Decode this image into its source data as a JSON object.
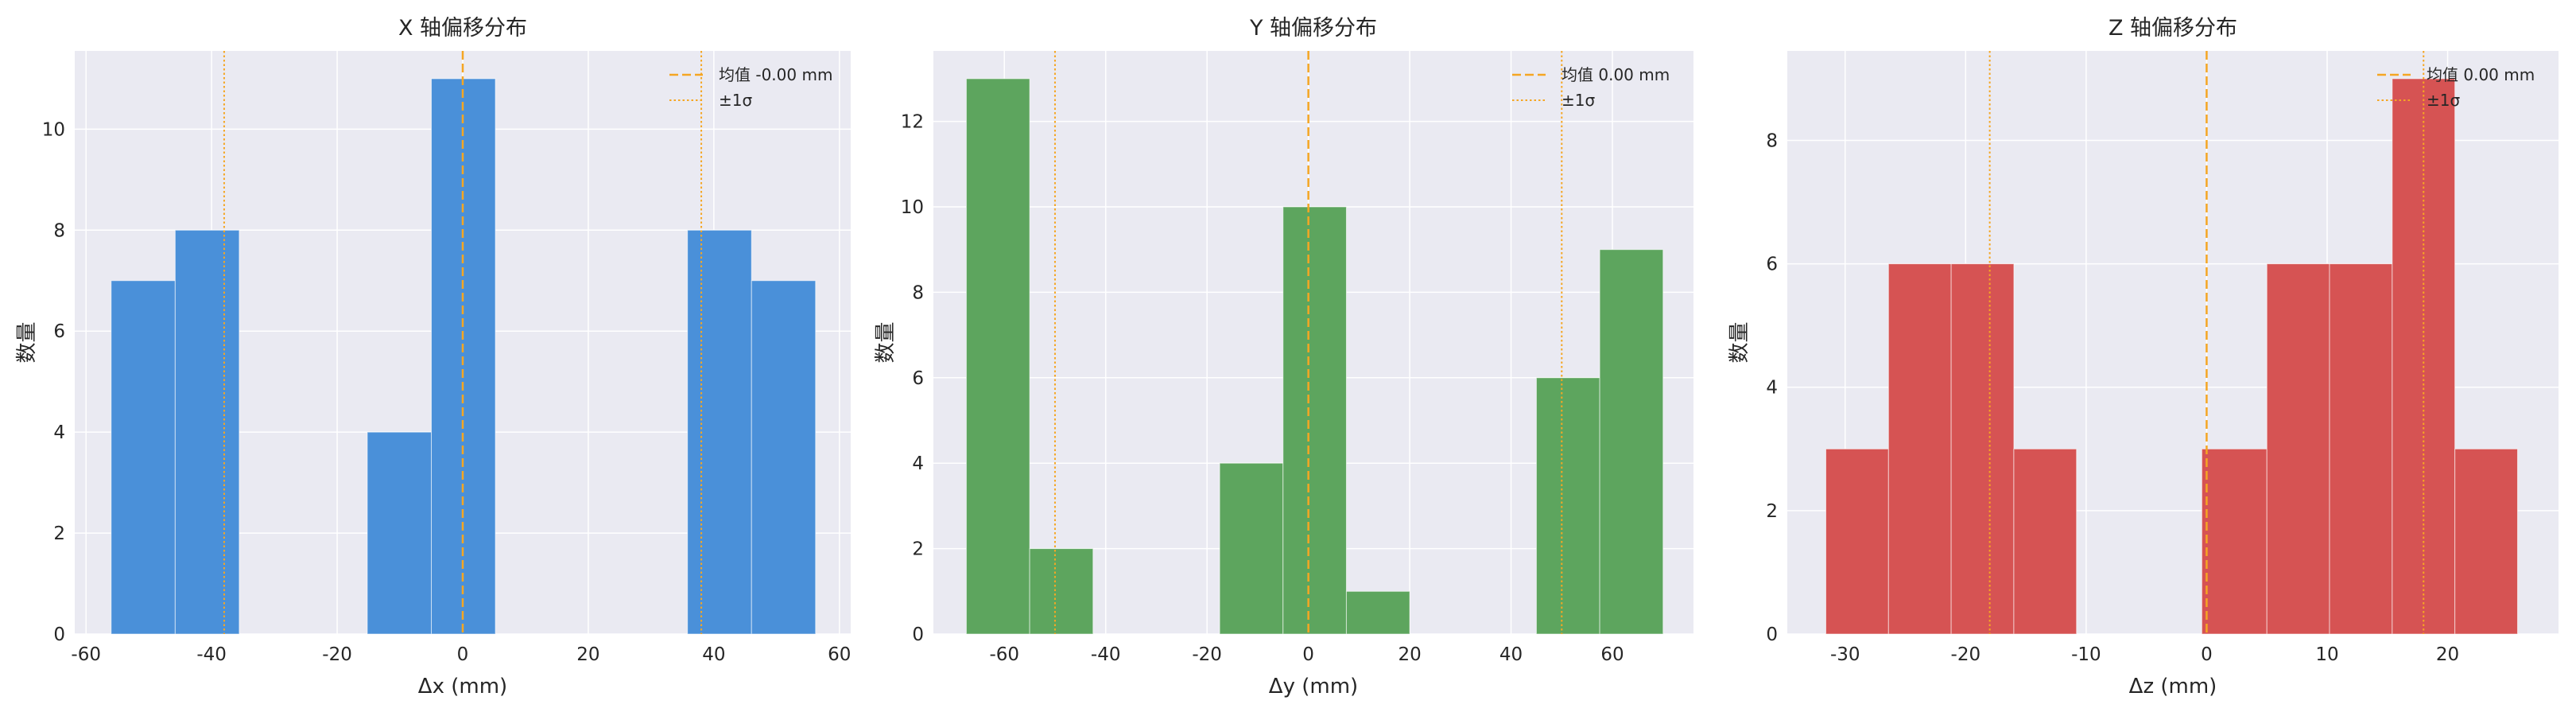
{
  "chart_data": [
    {
      "type": "bar",
      "title": "X 轴偏移分布",
      "xlabel": "Δx (mm)",
      "ylabel": "数量",
      "xlim": [
        -61.8,
        61.8
      ],
      "ylim": [
        0,
        11.55
      ],
      "xticks": [
        -60,
        -40,
        -20,
        0,
        20,
        40,
        60
      ],
      "yticks": [
        0,
        2,
        4,
        6,
        8,
        10
      ],
      "xtick_labels": [
        "-60",
        "-40",
        "-20",
        "0",
        "20",
        "40",
        "60"
      ],
      "ytick_labels": [
        "0",
        "2",
        "4",
        "6",
        "8",
        "10"
      ],
      "bins": [
        {
          "x0": -56.0,
          "x1": -45.8,
          "count": 7
        },
        {
          "x0": -45.8,
          "x1": -35.6,
          "count": 8
        },
        {
          "x0": -35.6,
          "x1": -25.4,
          "count": 0
        },
        {
          "x0": -25.4,
          "x1": -15.2,
          "count": 0
        },
        {
          "x0": -15.2,
          "x1": -5.0,
          "count": 4
        },
        {
          "x0": -5.0,
          "x1": 5.2,
          "count": 11
        },
        {
          "x0": 5.2,
          "x1": 15.4,
          "count": 0
        },
        {
          "x0": 15.4,
          "x1": 25.6,
          "count": 0
        },
        {
          "x0": 25.6,
          "x1": 35.8,
          "count": 0
        },
        {
          "x0": 35.8,
          "x1": 46.0,
          "count": 8
        },
        {
          "x0": 46.0,
          "x1": 56.2,
          "count": 7
        }
      ],
      "color": "#4a90d9",
      "mean": 0.0,
      "sigma": 38.0,
      "grid": true,
      "legend": [
        {
          "label": "均值 -0.00 mm",
          "style": "dashed"
        },
        {
          "label": "±1σ",
          "style": "dotted"
        }
      ],
      "legend_position": "top-right"
    },
    {
      "type": "bar",
      "title": "Y 轴偏移分布",
      "xlabel": "Δy (mm)",
      "ylabel": "数量",
      "xlim": [
        -74,
        76
      ],
      "ylim": [
        0,
        13.65
      ],
      "xticks": [
        -60,
        -40,
        -20,
        0,
        20,
        40,
        60
      ],
      "yticks": [
        0,
        2,
        4,
        6,
        8,
        10,
        12
      ],
      "xtick_labels": [
        "-60",
        "-40",
        "-20",
        "0",
        "20",
        "40",
        "60"
      ],
      "ytick_labels": [
        "0",
        "2",
        "4",
        "6",
        "8",
        "10",
        "12"
      ],
      "bins": [
        {
          "x0": -67.5,
          "x1": -55.0,
          "count": 13
        },
        {
          "x0": -55.0,
          "x1": -42.5,
          "count": 2
        },
        {
          "x0": -42.5,
          "x1": -30.0,
          "count": 0
        },
        {
          "x0": -30.0,
          "x1": -17.5,
          "count": 0
        },
        {
          "x0": -17.5,
          "x1": -5.0,
          "count": 4
        },
        {
          "x0": -5.0,
          "x1": 7.5,
          "count": 10
        },
        {
          "x0": 7.5,
          "x1": 20.0,
          "count": 1
        },
        {
          "x0": 20.0,
          "x1": 32.5,
          "count": 0
        },
        {
          "x0": 32.5,
          "x1": 45.0,
          "count": 0
        },
        {
          "x0": 45.0,
          "x1": 57.5,
          "count": 6
        },
        {
          "x0": 57.5,
          "x1": 70.0,
          "count": 9
        }
      ],
      "color": "#5da55e",
      "mean": 0.0,
      "sigma": 50.0,
      "grid": true,
      "legend": [
        {
          "label": "均值 0.00 mm",
          "style": "dashed"
        },
        {
          "label": "±1σ",
          "style": "dotted"
        }
      ],
      "legend_position": "top-right"
    },
    {
      "type": "bar",
      "title": "Z 轴偏移分布",
      "xlabel": "Δz (mm)",
      "ylabel": "数量",
      "xlim": [
        -34.8,
        29.2
      ],
      "ylim": [
        0,
        9.45
      ],
      "xticks": [
        -30,
        -20,
        -10,
        0,
        10,
        20
      ],
      "yticks": [
        0,
        2,
        4,
        6,
        8
      ],
      "xtick_labels": [
        "-30",
        "-20",
        "-10",
        "0",
        "10",
        "20"
      ],
      "ytick_labels": [
        "0",
        "2",
        "4",
        "6",
        "8"
      ],
      "bins": [
        {
          "x0": -31.6,
          "x1": -26.4,
          "count": 3
        },
        {
          "x0": -26.4,
          "x1": -21.2,
          "count": 6
        },
        {
          "x0": -21.2,
          "x1": -16.0,
          "count": 6
        },
        {
          "x0": -16.0,
          "x1": -10.8,
          "count": 3
        },
        {
          "x0": -10.8,
          "x1": -5.6,
          "count": 0
        },
        {
          "x0": -5.6,
          "x1": -0.4,
          "count": 0
        },
        {
          "x0": -0.4,
          "x1": 5.0,
          "count": 3
        },
        {
          "x0": 5.0,
          "x1": 10.2,
          "count": 6
        },
        {
          "x0": 10.2,
          "x1": 15.4,
          "count": 6
        },
        {
          "x0": 15.4,
          "x1": 20.6,
          "count": 9
        },
        {
          "x0": 20.6,
          "x1": 25.8,
          "count": 3
        }
      ],
      "color": "#d65353",
      "mean": 0.0,
      "sigma": 18.0,
      "grid": true,
      "legend": [
        {
          "label": "均值 0.00 mm",
          "style": "dashed"
        },
        {
          "label": "±1σ",
          "style": "dotted"
        }
      ],
      "legend_position": "top-right"
    }
  ],
  "colors": {
    "plot_bg": "#eaeaf2",
    "grid": "#ffffff",
    "mean_line": "#f5a623",
    "sigma_line": "#f5a623"
  }
}
